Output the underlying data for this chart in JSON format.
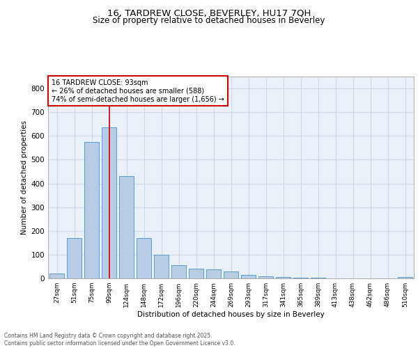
{
  "title1": "16, TARDREW CLOSE, BEVERLEY, HU17 7QH",
  "title2": "Size of property relative to detached houses in Beverley",
  "xlabel": "Distribution of detached houses by size in Beverley",
  "ylabel": "Number of detached properties",
  "bar_labels": [
    "27sqm",
    "51sqm",
    "75sqm",
    "99sqm",
    "124sqm",
    "148sqm",
    "172sqm",
    "196sqm",
    "220sqm",
    "244sqm",
    "269sqm",
    "293sqm",
    "317sqm",
    "341sqm",
    "365sqm",
    "389sqm",
    "413sqm",
    "438sqm",
    "462sqm",
    "486sqm",
    "510sqm"
  ],
  "bar_values": [
    20,
    170,
    575,
    635,
    430,
    170,
    100,
    55,
    42,
    37,
    28,
    15,
    10,
    5,
    3,
    2,
    1,
    1,
    1,
    0,
    6
  ],
  "bar_color": "#b8cce4",
  "bar_edge_color": "#5b9bd5",
  "vline_x": 3,
  "vline_color": "#cc0000",
  "annotation_title": "16 TARDREW CLOSE: 93sqm",
  "annotation_line2": "← 26% of detached houses are smaller (588)",
  "annotation_line3": "74% of semi-detached houses are larger (1,656) →",
  "annotation_box_color": "#cc0000",
  "annotation_bg": "#ffffff",
  "ylim": [
    0,
    850
  ],
  "yticks": [
    0,
    100,
    200,
    300,
    400,
    500,
    600,
    700,
    800
  ],
  "grid_color": "#d0d8e8",
  "bg_color": "#eaf0f8",
  "footer_line1": "Contains HM Land Registry data © Crown copyright and database right 2025.",
  "footer_line2": "Contains public sector information licensed under the Open Government Licence v3.0."
}
